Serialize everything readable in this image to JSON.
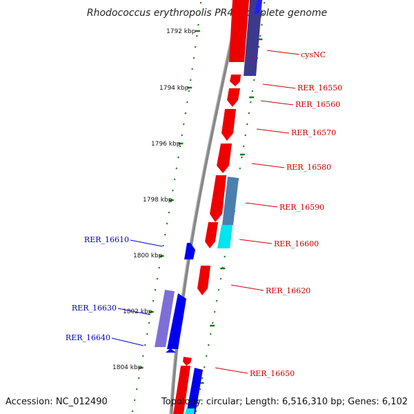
{
  "title": "Rhodococcus erythropolis PR4, complete genome",
  "accession": "Accession: NC_012490",
  "topology": "Topology: circular; Length: 6,516,310 bp; Genes: 6,102",
  "colors": {
    "backbone": "#888888",
    "tick": "#1a7a1a",
    "forward_gene": "#ee0000",
    "reverse_gene": "#0000ee",
    "operon_a": "#3d3a8c",
    "operon_b": "#4a7fb0",
    "cyan": "#00e5ee",
    "forward_label": "#cc0000",
    "reverse_label": "#0000cc"
  },
  "scale_labels": [
    "1792 kbp",
    "1794 kbp",
    "1796 kbp",
    "1798 kbp",
    "1800 kbp",
    "1802 kbp",
    "1804 kbp"
  ],
  "forward_labels": [
    "cysNC",
    "RER_16550",
    "RER_16560",
    "RER_16570",
    "RER_16580",
    "RER_16590",
    "RER_16600",
    "RER_16620",
    "RER_16650"
  ],
  "reverse_labels": [
    "RER_16610",
    "RER_16630",
    "RER_16640"
  ]
}
